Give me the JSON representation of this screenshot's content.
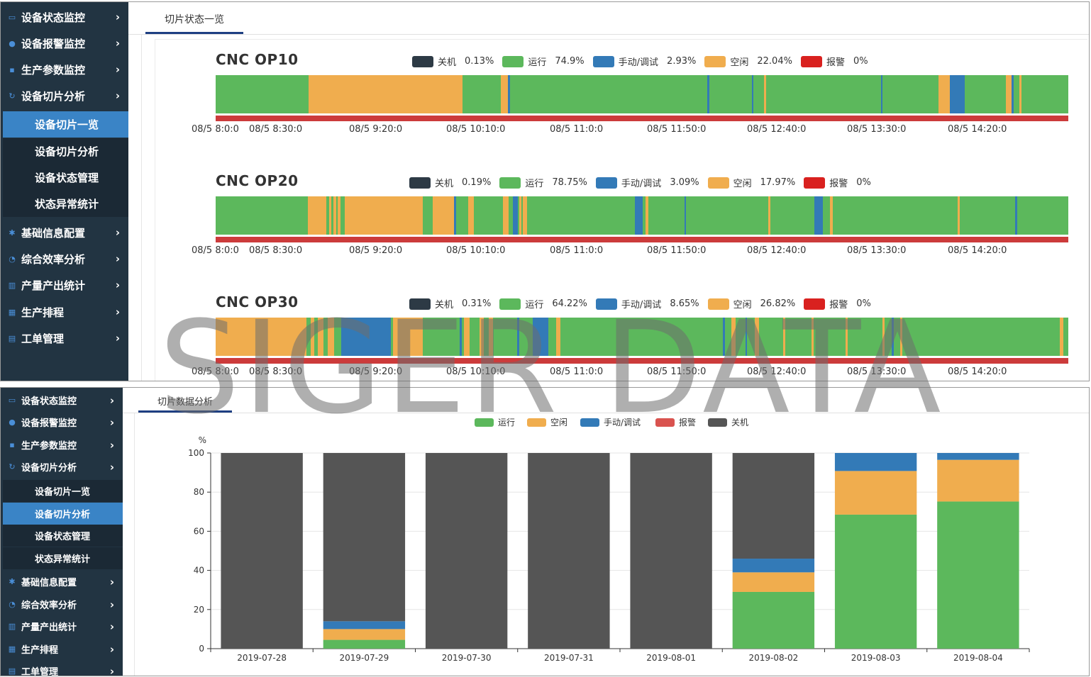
{
  "watermark": "SIGER DATA",
  "colors": {
    "off": "#2d3a45",
    "run": "#5cb85c",
    "manual": "#337ab7",
    "idle": "#f0ad4e",
    "alarm": "#d9211f",
    "sidebar_bg": "#223442",
    "active_blue": "#3a84c6"
  },
  "sidebar": {
    "items": [
      {
        "label": "设备状态监控",
        "icon": "monitor-icon"
      },
      {
        "label": "设备报警监控",
        "icon": "bell-icon"
      },
      {
        "label": "生产参数监控",
        "icon": "parameter-icon"
      },
      {
        "label": "设备切片分析",
        "icon": "refresh-icon"
      },
      {
        "label": "基础信息配置",
        "icon": "gear-icon"
      },
      {
        "label": "综合效率分析",
        "icon": "pie-icon"
      },
      {
        "label": "产量产出统计",
        "icon": "bar-chart-icon"
      },
      {
        "label": "生产排程",
        "icon": "schedule-icon"
      },
      {
        "label": "工单管理",
        "icon": "work-order-icon"
      }
    ],
    "subitems": [
      "设备切片一览",
      "设备切片分析",
      "设备状态管理",
      "状态异常统计"
    ]
  },
  "top_panel": {
    "tab": "切片状态一览",
    "time_ticks": [
      "08/5 8:0:0",
      "08/5 8:30:0",
      "08/5 9:20:0",
      "08/5 10:10:0",
      "08/5 11:0:0",
      "08/5 11:50:0",
      "08/5 12:40:0",
      "08/5 13:30:0",
      "08/5 14:20:0"
    ],
    "machines": [
      {
        "name": "CNC  OP10",
        "legend": [
          {
            "label": "关机",
            "pct": "0.13%"
          },
          {
            "label": "运行",
            "pct": "74.9%"
          },
          {
            "label": "手动/调试",
            "pct": "2.93%"
          },
          {
            "label": "空闲",
            "pct": "22.04%"
          },
          {
            "label": "报警",
            "pct": "0%"
          }
        ]
      },
      {
        "name": "CNC OP20",
        "legend": [
          {
            "label": "关机",
            "pct": "0.19%"
          },
          {
            "label": "运行",
            "pct": "78.75%"
          },
          {
            "label": "手动/调试",
            "pct": "3.09%"
          },
          {
            "label": "空闲",
            "pct": "17.97%"
          },
          {
            "label": "报警",
            "pct": "0%"
          }
        ]
      },
      {
        "name": "CNC OP30",
        "legend": [
          {
            "label": "关机",
            "pct": "0.31%"
          },
          {
            "label": "运行",
            "pct": "64.22%"
          },
          {
            "label": "手动/调试",
            "pct": "8.65%"
          },
          {
            "label": "空闲",
            "pct": "26.82%"
          },
          {
            "label": "报警",
            "pct": "0%"
          }
        ]
      }
    ]
  },
  "bottom_panel": {
    "tab": "切片数据分析"
  },
  "chart_data": {
    "type": "bar",
    "stacked": true,
    "ylabel": "%",
    "ylim": [
      0,
      100
    ],
    "yticks": [
      0,
      20,
      40,
      60,
      80,
      100
    ],
    "grid": true,
    "legend_position": "top-center",
    "categories": [
      "2019-07-28",
      "2019-07-29",
      "2019-07-30",
      "2019-07-31",
      "2019-08-01",
      "2019-08-02",
      "2019-08-03",
      "2019-08-04"
    ],
    "series": [
      {
        "name": "运行",
        "color": "#5cb85c",
        "values": [
          0,
          4.5,
          0,
          0,
          0,
          29,
          68.5,
          75.2
        ]
      },
      {
        "name": "空闲",
        "color": "#f0ad4e",
        "values": [
          0,
          5.5,
          0,
          0,
          0,
          10,
          22.3,
          21.3
        ]
      },
      {
        "name": "手动/调试",
        "color": "#337ab7",
        "values": [
          0,
          4,
          0,
          0,
          0,
          7,
          9.2,
          3.5
        ]
      },
      {
        "name": "报警",
        "color": "#d9534f",
        "values": [
          0,
          0,
          0,
          0,
          0,
          0,
          0,
          0
        ]
      },
      {
        "name": "关机",
        "color": "#555555",
        "values": [
          100,
          86,
          100,
          100,
          100,
          54,
          0,
          0
        ]
      }
    ]
  }
}
